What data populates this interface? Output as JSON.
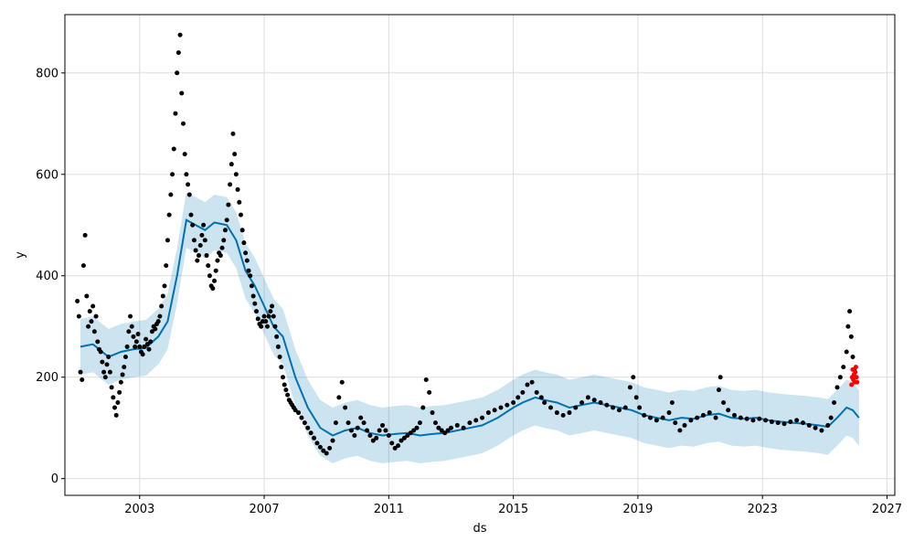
{
  "chart_data": {
    "type": "scatter",
    "title": "",
    "xlabel": "ds",
    "ylabel": "y",
    "grid": true,
    "legend": "none",
    "xlim": [
      2000.6,
      2027.25
    ],
    "ylim": [
      -33,
      915
    ],
    "x_ticks": [
      {
        "value": 2003,
        "label": "2003"
      },
      {
        "value": 2007,
        "label": "2007"
      },
      {
        "value": 2011,
        "label": "2011"
      },
      {
        "value": 2015,
        "label": "2015"
      },
      {
        "value": 2019,
        "label": "2019"
      },
      {
        "value": 2023,
        "label": "2023"
      },
      {
        "value": 2027,
        "label": "2027"
      }
    ],
    "y_ticks": [
      {
        "value": 0,
        "label": "0"
      },
      {
        "value": 200,
        "label": "200"
      },
      {
        "value": 400,
        "label": "400"
      },
      {
        "value": 600,
        "label": "600"
      },
      {
        "value": 800,
        "label": "800"
      }
    ],
    "colors": {
      "observed": "#000000",
      "highlight": "#ff0000",
      "forecast_line": "#0072b2",
      "interval_fill": "#0072b2",
      "grid": "#dddddd"
    },
    "forecast": {
      "x": [
        2001.1,
        2001.5,
        2002.0,
        2002.4,
        2002.8,
        2003.2,
        2003.6,
        2003.9,
        2004.2,
        2004.5,
        2004.8,
        2005.1,
        2005.4,
        2005.8,
        2006.1,
        2006.4,
        2006.7,
        2007.0,
        2007.3,
        2007.6,
        2008.0,
        2008.4,
        2008.8,
        2009.2,
        2009.6,
        2010.0,
        2010.4,
        2010.8,
        2011.2,
        2011.6,
        2012.0,
        2012.4,
        2012.8,
        2013.2,
        2013.6,
        2014.0,
        2014.5,
        2015.0,
        2015.3,
        2015.7,
        2016.0,
        2016.4,
        2016.8,
        2017.2,
        2017.6,
        2018.0,
        2018.4,
        2018.8,
        2019.2,
        2019.6,
        2020.0,
        2020.4,
        2020.8,
        2021.2,
        2021.6,
        2022.0,
        2022.4,
        2022.8,
        2023.2,
        2023.6,
        2024.0,
        2024.4,
        2024.8,
        2025.1,
        2025.4,
        2025.7,
        2025.9,
        2026.1
      ],
      "yhat": [
        260,
        265,
        240,
        250,
        255,
        258,
        280,
        310,
        400,
        510,
        500,
        490,
        505,
        500,
        470,
        410,
        380,
        340,
        300,
        280,
        200,
        140,
        100,
        85,
        95,
        100,
        90,
        85,
        88,
        90,
        85,
        88,
        90,
        95,
        100,
        105,
        120,
        140,
        150,
        160,
        155,
        150,
        140,
        145,
        150,
        145,
        140,
        135,
        125,
        120,
        115,
        120,
        118,
        125,
        128,
        120,
        118,
        120,
        115,
        112,
        110,
        108,
        105,
        102,
        120,
        140,
        135,
        120
      ],
      "lower": [
        205,
        210,
        185,
        195,
        200,
        203,
        225,
        255,
        345,
        455,
        445,
        435,
        450,
        445,
        415,
        355,
        325,
        285,
        245,
        225,
        145,
        85,
        45,
        30,
        40,
        45,
        35,
        30,
        33,
        35,
        30,
        33,
        35,
        40,
        45,
        50,
        65,
        85,
        95,
        105,
        100,
        95,
        85,
        90,
        95,
        90,
        85,
        80,
        70,
        65,
        60,
        65,
        63,
        70,
        73,
        65,
        63,
        65,
        60,
        57,
        55,
        53,
        50,
        47,
        65,
        85,
        80,
        65
      ],
      "upper": [
        315,
        320,
        295,
        305,
        310,
        313,
        335,
        365,
        455,
        565,
        555,
        545,
        560,
        555,
        525,
        465,
        435,
        395,
        355,
        335,
        255,
        195,
        155,
        140,
        150,
        155,
        145,
        140,
        143,
        145,
        140,
        143,
        145,
        150,
        155,
        160,
        175,
        195,
        205,
        215,
        210,
        205,
        195,
        200,
        205,
        200,
        195,
        190,
        180,
        175,
        170,
        175,
        173,
        180,
        183,
        175,
        173,
        175,
        170,
        167,
        165,
        163,
        160,
        157,
        175,
        195,
        190,
        175
      ]
    },
    "observed_points": [
      [
        2001.0,
        350
      ],
      [
        2001.05,
        320
      ],
      [
        2001.1,
        210
      ],
      [
        2001.15,
        195
      ],
      [
        2001.2,
        420
      ],
      [
        2001.25,
        480
      ],
      [
        2001.3,
        360
      ],
      [
        2001.35,
        300
      ],
      [
        2001.4,
        330
      ],
      [
        2001.45,
        310
      ],
      [
        2001.5,
        340
      ],
      [
        2001.55,
        290
      ],
      [
        2001.6,
        320
      ],
      [
        2001.65,
        270
      ],
      [
        2001.7,
        255
      ],
      [
        2001.75,
        250
      ],
      [
        2001.8,
        230
      ],
      [
        2001.85,
        210
      ],
      [
        2001.9,
        200
      ],
      [
        2001.95,
        225
      ],
      [
        2002.0,
        240
      ],
      [
        2002.05,
        210
      ],
      [
        2002.1,
        180
      ],
      [
        2002.15,
        160
      ],
      [
        2002.2,
        140
      ],
      [
        2002.25,
        125
      ],
      [
        2002.3,
        150
      ],
      [
        2002.35,
        170
      ],
      [
        2002.4,
        190
      ],
      [
        2002.45,
        205
      ],
      [
        2002.5,
        220
      ],
      [
        2002.55,
        240
      ],
      [
        2002.6,
        260
      ],
      [
        2002.65,
        290
      ],
      [
        2002.7,
        320
      ],
      [
        2002.75,
        300
      ],
      [
        2002.8,
        280
      ],
      [
        2002.85,
        260
      ],
      [
        2002.9,
        270
      ],
      [
        2002.95,
        285
      ],
      [
        2003.0,
        260
      ],
      [
        2003.05,
        250
      ],
      [
        2003.1,
        245
      ],
      [
        2003.15,
        260
      ],
      [
        2003.2,
        275
      ],
      [
        2003.25,
        265
      ],
      [
        2003.3,
        255
      ],
      [
        2003.35,
        270
      ],
      [
        2003.4,
        290
      ],
      [
        2003.45,
        300
      ],
      [
        2003.5,
        295
      ],
      [
        2003.55,
        305
      ],
      [
        2003.6,
        310
      ],
      [
        2003.65,
        320
      ],
      [
        2003.7,
        340
      ],
      [
        2003.75,
        360
      ],
      [
        2003.8,
        380
      ],
      [
        2003.85,
        420
      ],
      [
        2003.9,
        470
      ],
      [
        2003.95,
        520
      ],
      [
        2004.0,
        560
      ],
      [
        2004.05,
        600
      ],
      [
        2004.1,
        650
      ],
      [
        2004.15,
        720
      ],
      [
        2004.2,
        800
      ],
      [
        2004.25,
        840
      ],
      [
        2004.3,
        875
      ],
      [
        2004.35,
        760
      ],
      [
        2004.4,
        700
      ],
      [
        2004.45,
        640
      ],
      [
        2004.5,
        600
      ],
      [
        2004.55,
        580
      ],
      [
        2004.6,
        560
      ],
      [
        2004.65,
        520
      ],
      [
        2004.7,
        500
      ],
      [
        2004.75,
        470
      ],
      [
        2004.8,
        450
      ],
      [
        2004.85,
        430
      ],
      [
        2004.9,
        440
      ],
      [
        2004.95,
        460
      ],
      [
        2005.0,
        480
      ],
      [
        2005.05,
        500
      ],
      [
        2005.1,
        470
      ],
      [
        2005.15,
        440
      ],
      [
        2005.2,
        420
      ],
      [
        2005.25,
        400
      ],
      [
        2005.3,
        380
      ],
      [
        2005.35,
        375
      ],
      [
        2005.4,
        390
      ],
      [
        2005.45,
        410
      ],
      [
        2005.5,
        430
      ],
      [
        2005.55,
        445
      ],
      [
        2005.6,
        440
      ],
      [
        2005.65,
        455
      ],
      [
        2005.7,
        470
      ],
      [
        2005.75,
        490
      ],
      [
        2005.8,
        510
      ],
      [
        2005.85,
        540
      ],
      [
        2005.9,
        580
      ],
      [
        2005.95,
        620
      ],
      [
        2006.0,
        680
      ],
      [
        2006.05,
        640
      ],
      [
        2006.1,
        600
      ],
      [
        2006.15,
        570
      ],
      [
        2006.2,
        545
      ],
      [
        2006.25,
        520
      ],
      [
        2006.3,
        490
      ],
      [
        2006.35,
        465
      ],
      [
        2006.4,
        445
      ],
      [
        2006.45,
        430
      ],
      [
        2006.5,
        410
      ],
      [
        2006.55,
        400
      ],
      [
        2006.6,
        380
      ],
      [
        2006.65,
        360
      ],
      [
        2006.7,
        345
      ],
      [
        2006.75,
        330
      ],
      [
        2006.8,
        315
      ],
      [
        2006.85,
        305
      ],
      [
        2006.9,
        300
      ],
      [
        2006.95,
        310
      ],
      [
        2007.0,
        320
      ],
      [
        2007.05,
        310
      ],
      [
        2007.1,
        300
      ],
      [
        2007.15,
        320
      ],
      [
        2007.2,
        330
      ],
      [
        2007.25,
        340
      ],
      [
        2007.3,
        320
      ],
      [
        2007.35,
        300
      ],
      [
        2007.4,
        280
      ],
      [
        2007.45,
        260
      ],
      [
        2007.5,
        240
      ],
      [
        2007.55,
        220
      ],
      [
        2007.6,
        200
      ],
      [
        2007.65,
        185
      ],
      [
        2007.7,
        175
      ],
      [
        2007.75,
        165
      ],
      [
        2007.8,
        155
      ],
      [
        2007.85,
        150
      ],
      [
        2007.9,
        145
      ],
      [
        2007.95,
        140
      ],
      [
        2008.0,
        135
      ],
      [
        2008.1,
        130
      ],
      [
        2008.2,
        120
      ],
      [
        2008.3,
        110
      ],
      [
        2008.4,
        100
      ],
      [
        2008.5,
        90
      ],
      [
        2008.6,
        80
      ],
      [
        2008.7,
        70
      ],
      [
        2008.8,
        62
      ],
      [
        2008.9,
        55
      ],
      [
        2009.0,
        50
      ],
      [
        2009.1,
        60
      ],
      [
        2009.2,
        75
      ],
      [
        2009.3,
        110
      ],
      [
        2009.4,
        160
      ],
      [
        2009.5,
        190
      ],
      [
        2009.6,
        140
      ],
      [
        2009.7,
        110
      ],
      [
        2009.8,
        95
      ],
      [
        2009.9,
        85
      ],
      [
        2010.0,
        100
      ],
      [
        2010.1,
        120
      ],
      [
        2010.2,
        110
      ],
      [
        2010.3,
        95
      ],
      [
        2010.4,
        85
      ],
      [
        2010.5,
        75
      ],
      [
        2010.6,
        80
      ],
      [
        2010.7,
        95
      ],
      [
        2010.8,
        105
      ],
      [
        2010.9,
        95
      ],
      [
        2011.0,
        85
      ],
      [
        2011.1,
        70
      ],
      [
        2011.2,
        60
      ],
      [
        2011.3,
        65
      ],
      [
        2011.4,
        75
      ],
      [
        2011.5,
        80
      ],
      [
        2011.6,
        85
      ],
      [
        2011.7,
        90
      ],
      [
        2011.8,
        95
      ],
      [
        2011.9,
        100
      ],
      [
        2012.0,
        110
      ],
      [
        2012.1,
        140
      ],
      [
        2012.2,
        195
      ],
      [
        2012.3,
        170
      ],
      [
        2012.4,
        130
      ],
      [
        2012.5,
        110
      ],
      [
        2012.6,
        100
      ],
      [
        2012.7,
        95
      ],
      [
        2012.8,
        90
      ],
      [
        2012.9,
        95
      ],
      [
        2013.0,
        100
      ],
      [
        2013.2,
        105
      ],
      [
        2013.4,
        100
      ],
      [
        2013.6,
        110
      ],
      [
        2013.8,
        115
      ],
      [
        2014.0,
        120
      ],
      [
        2014.2,
        130
      ],
      [
        2014.4,
        135
      ],
      [
        2014.6,
        140
      ],
      [
        2014.8,
        145
      ],
      [
        2015.0,
        150
      ],
      [
        2015.15,
        160
      ],
      [
        2015.3,
        170
      ],
      [
        2015.45,
        185
      ],
      [
        2015.6,
        190
      ],
      [
        2015.75,
        170
      ],
      [
        2015.9,
        160
      ],
      [
        2016.0,
        150
      ],
      [
        2016.2,
        140
      ],
      [
        2016.4,
        130
      ],
      [
        2016.6,
        125
      ],
      [
        2016.8,
        130
      ],
      [
        2017.0,
        140
      ],
      [
        2017.2,
        150
      ],
      [
        2017.4,
        160
      ],
      [
        2017.6,
        155
      ],
      [
        2017.8,
        150
      ],
      [
        2018.0,
        145
      ],
      [
        2018.2,
        140
      ],
      [
        2018.4,
        135
      ],
      [
        2018.6,
        140
      ],
      [
        2018.75,
        180
      ],
      [
        2018.85,
        200
      ],
      [
        2018.95,
        160
      ],
      [
        2019.05,
        140
      ],
      [
        2019.2,
        125
      ],
      [
        2019.4,
        120
      ],
      [
        2019.6,
        115
      ],
      [
        2019.8,
        120
      ],
      [
        2020.0,
        130
      ],
      [
        2020.1,
        150
      ],
      [
        2020.2,
        110
      ],
      [
        2020.35,
        95
      ],
      [
        2020.5,
        105
      ],
      [
        2020.7,
        115
      ],
      [
        2020.9,
        120
      ],
      [
        2021.1,
        125
      ],
      [
        2021.3,
        130
      ],
      [
        2021.5,
        120
      ],
      [
        2021.6,
        175
      ],
      [
        2021.65,
        200
      ],
      [
        2021.75,
        150
      ],
      [
        2021.9,
        135
      ],
      [
        2022.1,
        125
      ],
      [
        2022.3,
        120
      ],
      [
        2022.5,
        118
      ],
      [
        2022.7,
        115
      ],
      [
        2022.9,
        118
      ],
      [
        2023.1,
        115
      ],
      [
        2023.3,
        112
      ],
      [
        2023.5,
        110
      ],
      [
        2023.7,
        108
      ],
      [
        2023.9,
        112
      ],
      [
        2024.1,
        115
      ],
      [
        2024.3,
        110
      ],
      [
        2024.5,
        105
      ],
      [
        2024.7,
        100
      ],
      [
        2024.9,
        95
      ],
      [
        2025.1,
        105
      ],
      [
        2025.2,
        120
      ],
      [
        2025.3,
        150
      ],
      [
        2025.4,
        180
      ],
      [
        2025.5,
        200
      ],
      [
        2025.6,
        220
      ],
      [
        2025.7,
        250
      ],
      [
        2025.75,
        300
      ],
      [
        2025.8,
        330
      ],
      [
        2025.85,
        280
      ],
      [
        2025.9,
        240
      ],
      [
        2025.95,
        215
      ]
    ],
    "highlight_points": [
      [
        2025.86,
        185
      ],
      [
        2025.88,
        200
      ],
      [
        2025.9,
        215
      ],
      [
        2025.92,
        195
      ],
      [
        2025.94,
        205
      ],
      [
        2025.96,
        190
      ],
      [
        2025.98,
        210
      ],
      [
        2026.0,
        220
      ],
      [
        2026.02,
        200
      ],
      [
        2026.04,
        190
      ]
    ]
  }
}
